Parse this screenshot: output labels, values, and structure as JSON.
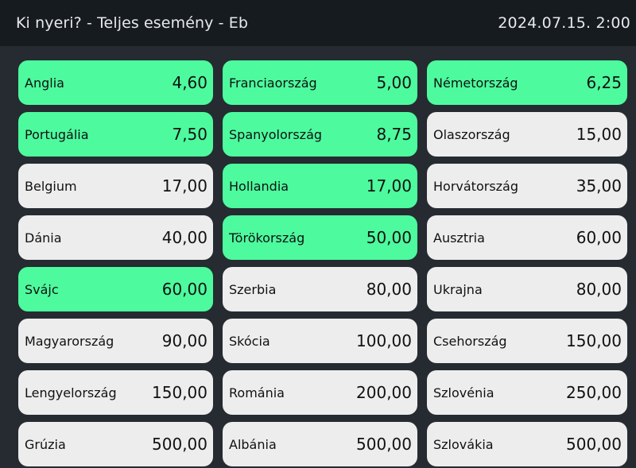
{
  "header": {
    "title": "Ki nyeri? - Teljes esemény - Eb",
    "datetime": "2024.07.15. 2:00"
  },
  "colors": {
    "highlight": "#4dfb9e",
    "normal": "#ededed",
    "background": "#252b31",
    "header": "#161b20"
  },
  "selections": [
    {
      "name": "Anglia",
      "odds": "4,60",
      "highlighted": true
    },
    {
      "name": "Franciaország",
      "odds": "5,00",
      "highlighted": true
    },
    {
      "name": "Németország",
      "odds": "6,25",
      "highlighted": true
    },
    {
      "name": "Portugália",
      "odds": "7,50",
      "highlighted": true
    },
    {
      "name": "Spanyolország",
      "odds": "8,75",
      "highlighted": true
    },
    {
      "name": "Olaszország",
      "odds": "15,00",
      "highlighted": false
    },
    {
      "name": "Belgium",
      "odds": "17,00",
      "highlighted": false
    },
    {
      "name": "Hollandia",
      "odds": "17,00",
      "highlighted": true
    },
    {
      "name": "Horvátország",
      "odds": "35,00",
      "highlighted": false
    },
    {
      "name": "Dánia",
      "odds": "40,00",
      "highlighted": false
    },
    {
      "name": "Törökország",
      "odds": "50,00",
      "highlighted": true
    },
    {
      "name": "Ausztria",
      "odds": "60,00",
      "highlighted": false
    },
    {
      "name": "Svájc",
      "odds": "60,00",
      "highlighted": true
    },
    {
      "name": "Szerbia",
      "odds": "80,00",
      "highlighted": false
    },
    {
      "name": "Ukrajna",
      "odds": "80,00",
      "highlighted": false
    },
    {
      "name": "Magyarország",
      "odds": "90,00",
      "highlighted": false
    },
    {
      "name": "Skócia",
      "odds": "100,00",
      "highlighted": false
    },
    {
      "name": "Csehország",
      "odds": "150,00",
      "highlighted": false
    },
    {
      "name": "Lengyelország",
      "odds": "150,00",
      "highlighted": false
    },
    {
      "name": "Románia",
      "odds": "200,00",
      "highlighted": false
    },
    {
      "name": "Szlovénia",
      "odds": "250,00",
      "highlighted": false
    },
    {
      "name": "Grúzia",
      "odds": "500,00",
      "highlighted": false
    },
    {
      "name": "Albánia",
      "odds": "500,00",
      "highlighted": false
    },
    {
      "name": "Szlovákia",
      "odds": "500,00",
      "highlighted": false
    }
  ]
}
